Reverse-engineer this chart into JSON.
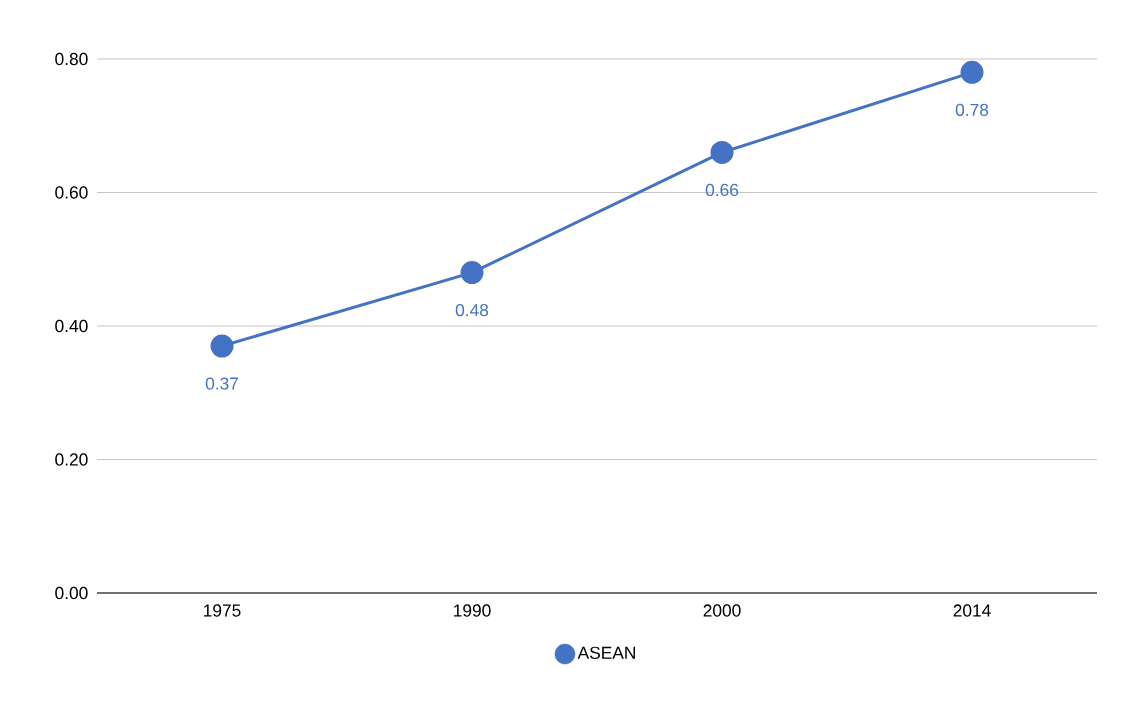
{
  "chart_data": {
    "type": "line",
    "categories": [
      "1975",
      "1990",
      "2000",
      "2014"
    ],
    "series": [
      {
        "name": "ASEAN",
        "color": "#4472c4",
        "values": [
          0.37,
          0.48,
          0.66,
          0.78
        ]
      }
    ],
    "ylim": [
      0,
      0.8
    ],
    "yticks": [
      {
        "value": 0,
        "label": "0.00"
      },
      {
        "value": 0.2,
        "label": "0.20"
      },
      {
        "value": 0.4,
        "label": "0.40"
      },
      {
        "value": 0.6,
        "label": "0.60"
      },
      {
        "value": 0.8,
        "label": "0.80"
      }
    ],
    "grid": "y",
    "legend": "bottom",
    "marker": "circle",
    "line_style": "solid",
    "data_labels": true
  }
}
